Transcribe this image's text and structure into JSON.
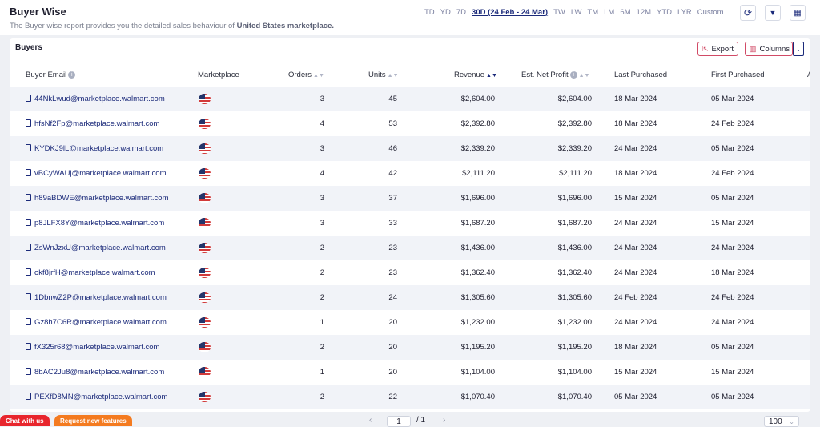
{
  "header": {
    "title": "Buyer Wise",
    "subtitle_prefix": "The Buyer wise report provides you the detailed sales behaviour of ",
    "subtitle_market": "United States marketplace.",
    "ranges": [
      "TD",
      "YD",
      "7D",
      "30D (24 Feb - 24 Mar)",
      "TW",
      "LW",
      "TM",
      "LM",
      "6M",
      "12M",
      "YTD",
      "LYR",
      "Custom"
    ],
    "active_range": "30D (24 Feb - 24 Mar)"
  },
  "card": {
    "title": "Buyers",
    "export_label": "Export",
    "columns_label": "Columns"
  },
  "columns": {
    "email": "Buyer Email",
    "marketplace": "Marketplace",
    "orders": "Orders",
    "units": "Units",
    "revenue": "Revenue",
    "profit": "Est. Net Profit",
    "last": "Last Purchased",
    "first": "First Purchased",
    "more": "A"
  },
  "rows": [
    {
      "email": "44NkLwud@marketplace.walmart.com",
      "orders": "3",
      "units": "45",
      "revenue": "$2,604.00",
      "profit": "$2,604.00",
      "last": "18 Mar 2024",
      "first": "05 Mar 2024"
    },
    {
      "email": "hfsNf2Fp@marketplace.walmart.com",
      "orders": "4",
      "units": "53",
      "revenue": "$2,392.80",
      "profit": "$2,392.80",
      "last": "18 Mar 2024",
      "first": "24 Feb 2024"
    },
    {
      "email": "KYDKJ9lL@marketplace.walmart.com",
      "orders": "3",
      "units": "46",
      "revenue": "$2,339.20",
      "profit": "$2,339.20",
      "last": "24 Mar 2024",
      "first": "05 Mar 2024"
    },
    {
      "email": "vBCyWAUj@marketplace.walmart.com",
      "orders": "4",
      "units": "42",
      "revenue": "$2,111.20",
      "profit": "$2,111.20",
      "last": "18 Mar 2024",
      "first": "24 Feb 2024"
    },
    {
      "email": "h89aBDWE@marketplace.walmart.com",
      "orders": "3",
      "units": "37",
      "revenue": "$1,696.00",
      "profit": "$1,696.00",
      "last": "15 Mar 2024",
      "first": "05 Mar 2024"
    },
    {
      "email": "p8JLFX8Y@marketplace.walmart.com",
      "orders": "3",
      "units": "33",
      "revenue": "$1,687.20",
      "profit": "$1,687.20",
      "last": "24 Mar 2024",
      "first": "15 Mar 2024"
    },
    {
      "email": "ZsWnJzxU@marketplace.walmart.com",
      "orders": "2",
      "units": "23",
      "revenue": "$1,436.00",
      "profit": "$1,436.00",
      "last": "24 Mar 2024",
      "first": "24 Mar 2024"
    },
    {
      "email": "okf8jrfH@marketplace.walmart.com",
      "orders": "2",
      "units": "23",
      "revenue": "$1,362.40",
      "profit": "$1,362.40",
      "last": "24 Mar 2024",
      "first": "18 Mar 2024"
    },
    {
      "email": "1DbnwZ2P@marketplace.walmart.com",
      "orders": "2",
      "units": "24",
      "revenue": "$1,305.60",
      "profit": "$1,305.60",
      "last": "24 Feb 2024",
      "first": "24 Feb 2024"
    },
    {
      "email": "Gz8h7C6R@marketplace.walmart.com",
      "orders": "1",
      "units": "20",
      "revenue": "$1,232.00",
      "profit": "$1,232.00",
      "last": "24 Mar 2024",
      "first": "24 Mar 2024"
    },
    {
      "email": "fX325r68@marketplace.walmart.com",
      "orders": "2",
      "units": "20",
      "revenue": "$1,195.20",
      "profit": "$1,195.20",
      "last": "18 Mar 2024",
      "first": "05 Mar 2024"
    },
    {
      "email": "8bAC2Ju8@marketplace.walmart.com",
      "orders": "1",
      "units": "20",
      "revenue": "$1,104.00",
      "profit": "$1,104.00",
      "last": "15 Mar 2024",
      "first": "15 Mar 2024"
    },
    {
      "email": "PEXfD8MN@marketplace.walmart.com",
      "orders": "2",
      "units": "22",
      "revenue": "$1,070.40",
      "profit": "$1,070.40",
      "last": "05 Mar 2024",
      "first": "05 Mar 2024"
    }
  ],
  "footer": {
    "chat_label": "Chat with us",
    "request_label": "Request new features",
    "page": "1",
    "total_pages": "/ 1",
    "per_page": "100",
    "prev": "‹",
    "next": "›"
  },
  "colors": {
    "accent": "#1b2a7a",
    "export_border": "#d14a66",
    "chat": "#e8262d",
    "request": "#f47b20"
  },
  "icons": [
    "refresh-icon",
    "filter-icon",
    "layout-icon",
    "export-icon",
    "columns-icon",
    "copy-icon",
    "us-flag-icon",
    "info-icon",
    "sort-icon"
  ]
}
